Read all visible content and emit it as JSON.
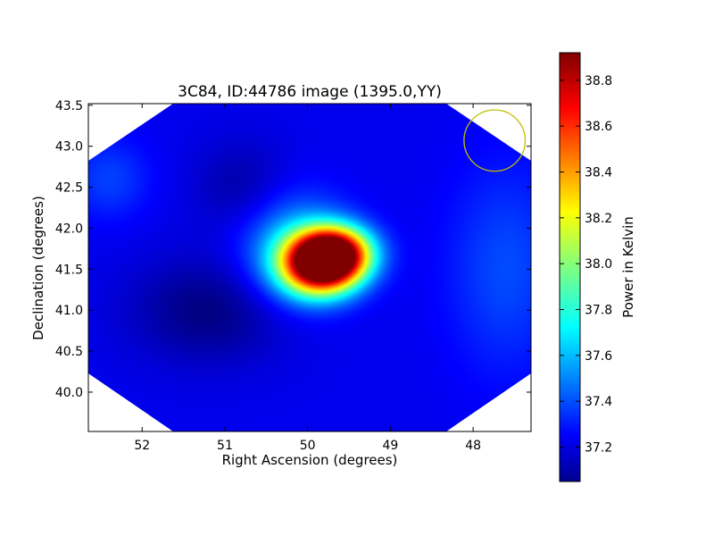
{
  "chart_data": {
    "type": "heatmap",
    "title": "3C84, ID:44786 image (1395.0,YY)",
    "xlabel": "Right Ascension (degrees)",
    "ylabel": "Declination (degrees)",
    "xlim": [
      52.65,
      47.3
    ],
    "ylim": [
      39.52,
      43.52
    ],
    "x_ticks": [
      52,
      51,
      50,
      49,
      48
    ],
    "y_ticks": [
      40.0,
      40.5,
      41.0,
      41.5,
      42.0,
      42.5,
      43.0,
      43.5
    ],
    "x_tick_labels": [
      "52",
      "51",
      "50",
      "49",
      "48"
    ],
    "y_tick_labels": [
      "40.0",
      "40.5",
      "41.0",
      "41.5",
      "42.0",
      "42.5",
      "43.0",
      "43.5"
    ],
    "colorbar": {
      "label": "Power in Kelvin",
      "range": [
        37.05,
        38.92
      ],
      "ticks": [
        37.2,
        37.4,
        37.6,
        37.8,
        38.0,
        38.2,
        38.4,
        38.6,
        38.8
      ],
      "tick_labels": [
        "37.2",
        "37.4",
        "37.6",
        "37.8",
        "38.0",
        "38.2",
        "38.4",
        "38.6",
        "38.8"
      ],
      "colormap": "jet"
    },
    "baseline_value": 37.25,
    "features": [
      {
        "ra": 49.85,
        "dec": 41.55,
        "peak_value": 38.9,
        "sigma_ra": 0.32,
        "sigma_dec": 0.25
      },
      {
        "ra": 49.65,
        "dec": 41.7,
        "peak_value": 38.5,
        "sigma_ra": 0.3,
        "sigma_dec": 0.22
      },
      {
        "ra": 50.15,
        "dec": 41.75,
        "peak_value": 37.65,
        "sigma_ra": 0.45,
        "sigma_dec": 0.45
      },
      {
        "ra": 51.2,
        "dec": 41.0,
        "peak_value": 37.05,
        "sigma_ra": 0.65,
        "sigma_dec": 0.45
      },
      {
        "ra": 50.8,
        "dec": 42.5,
        "peak_value": 37.12,
        "sigma_ra": 0.4,
        "sigma_dec": 0.4
      },
      {
        "ra": 47.6,
        "dec": 41.5,
        "peak_value": 37.42,
        "sigma_ra": 0.5,
        "sigma_dec": 0.9
      },
      {
        "ra": 52.4,
        "dec": 42.6,
        "peak_value": 37.4,
        "sigma_ra": 0.35,
        "sigma_dec": 0.35
      }
    ],
    "beam_circle": {
      "ra": 47.74,
      "dec": 43.07,
      "radius_deg": 0.37,
      "color": "#bfbf00"
    },
    "masked_corner_color": "#ffffff"
  }
}
